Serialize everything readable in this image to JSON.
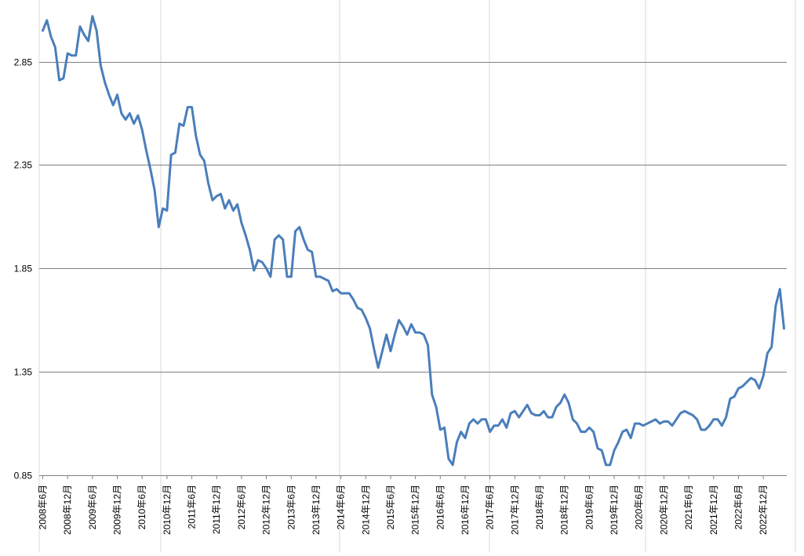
{
  "chart_data": {
    "type": "line",
    "title": "",
    "xlabel": "",
    "ylabel": "",
    "ylim": [
      0.85,
      3.08
    ],
    "y_ticks": [
      "0.85",
      "1.35",
      "1.85",
      "2.35",
      "2.85"
    ],
    "grid": true,
    "legend": "none",
    "line_color": "#4a7ebb",
    "x_labels": [
      "2008年6月",
      "2008年12月",
      "2009年6月",
      "2009年12月",
      "2010年6月",
      "2010年12月",
      "2011年6月",
      "2011年12月",
      "2012年6月",
      "2012年12月",
      "2013年6月",
      "2013年12月",
      "2014年6月",
      "2014年12月",
      "2015年6月",
      "2015年12月",
      "2016年6月",
      "2016年12月",
      "2017年6月",
      "2017年12月",
      "2018年6月",
      "2018年12月",
      "2019年6月",
      "2019年12月",
      "2020年6月",
      "2020年12月",
      "2021年6月",
      "2021年12月",
      "2022年6月",
      "2022年12月"
    ],
    "series": [
      {
        "start": "2008年6月",
        "frequency": "monthly",
        "values": [
          3.0,
          3.05,
          2.97,
          2.92,
          2.76,
          2.77,
          2.89,
          2.88,
          2.88,
          3.02,
          2.98,
          2.95,
          3.07,
          3.0,
          2.83,
          2.75,
          2.69,
          2.64,
          2.69,
          2.6,
          2.57,
          2.6,
          2.55,
          2.59,
          2.52,
          2.42,
          2.33,
          2.23,
          2.05,
          2.14,
          2.13,
          2.4,
          2.41,
          2.55,
          2.54,
          2.63,
          2.63,
          2.49,
          2.4,
          2.37,
          2.26,
          2.18,
          2.2,
          2.21,
          2.14,
          2.18,
          2.13,
          2.16,
          2.07,
          2.01,
          1.94,
          1.84,
          1.89,
          1.88,
          1.85,
          1.81,
          1.99,
          2.01,
          1.99,
          1.81,
          1.81,
          2.03,
          2.05,
          1.99,
          1.94,
          1.93,
          1.81,
          1.81,
          1.8,
          1.79,
          1.74,
          1.75,
          1.73,
          1.73,
          1.73,
          1.7,
          1.66,
          1.65,
          1.61,
          1.56,
          1.46,
          1.37,
          1.45,
          1.53,
          1.45,
          1.53,
          1.6,
          1.57,
          1.53,
          1.58,
          1.54,
          1.54,
          1.53,
          1.48,
          1.24,
          1.18,
          1.07,
          1.08,
          0.93,
          0.9,
          1.01,
          1.06,
          1.03,
          1.1,
          1.12,
          1.1,
          1.12,
          1.12,
          1.06,
          1.09,
          1.09,
          1.12,
          1.08,
          1.15,
          1.16,
          1.13,
          1.16,
          1.19,
          1.15,
          1.14,
          1.14,
          1.16,
          1.13,
          1.13,
          1.18,
          1.2,
          1.24,
          1.2,
          1.12,
          1.1,
          1.06,
          1.06,
          1.08,
          1.06,
          0.98,
          0.97,
          0.9,
          0.9,
          0.97,
          1.01,
          1.06,
          1.07,
          1.03,
          1.1,
          1.1,
          1.09,
          1.1,
          1.11,
          1.12,
          1.1,
          1.11,
          1.11,
          1.09,
          1.12,
          1.15,
          1.16,
          1.15,
          1.14,
          1.12,
          1.07,
          1.07,
          1.09,
          1.12,
          1.12,
          1.09,
          1.13,
          1.22,
          1.23,
          1.27,
          1.28,
          1.3,
          1.32,
          1.31,
          1.27,
          1.33,
          1.44,
          1.47,
          1.67,
          1.75,
          1.56
        ]
      }
    ]
  }
}
